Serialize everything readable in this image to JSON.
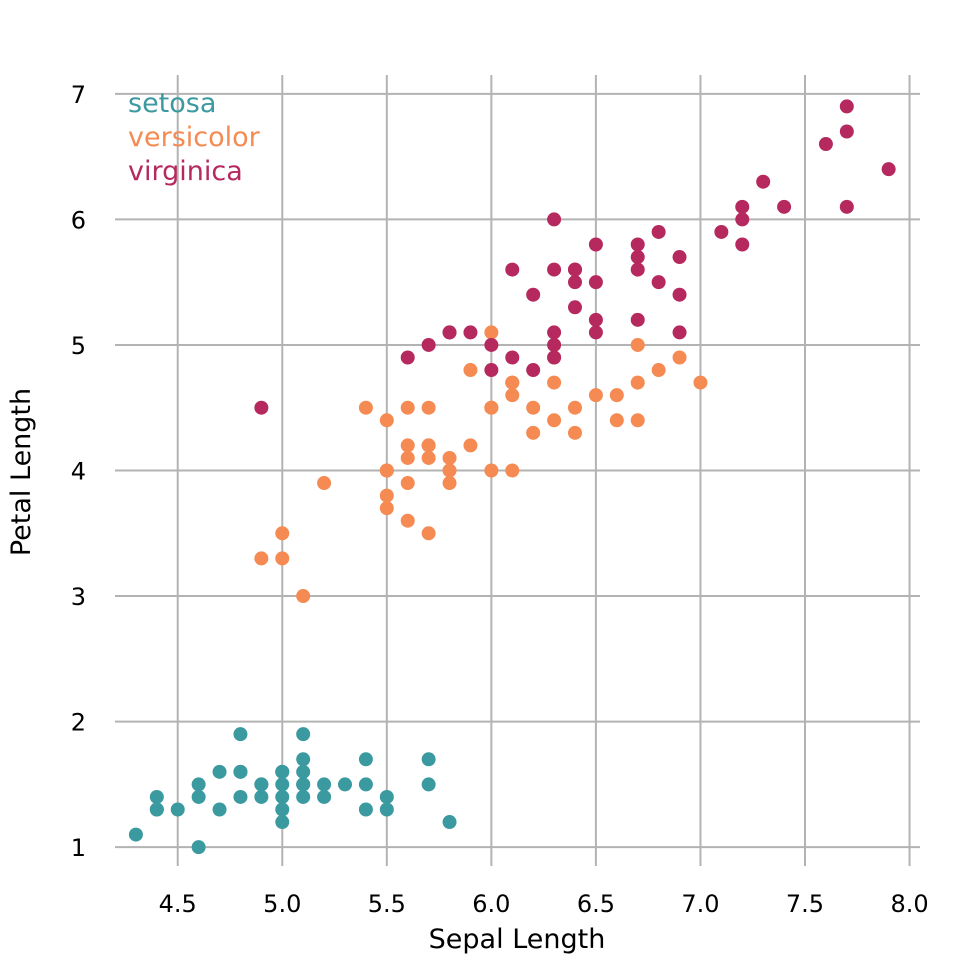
{
  "chart_data": {
    "type": "scatter",
    "title": "",
    "xlabel": "Sepal Length",
    "ylabel": "Petal Length",
    "xlim": [
      4.2,
      8.05
    ],
    "ylim": [
      0.85,
      7.15
    ],
    "xticks": [
      4.5,
      5.0,
      5.5,
      6.0,
      6.5,
      7.0,
      7.5,
      8.0
    ],
    "xtick_labels": [
      "4.5",
      "5.0",
      "5.5",
      "6.0",
      "6.5",
      "7.0",
      "7.5",
      "8.0"
    ],
    "yticks": [
      1,
      2,
      3,
      4,
      5,
      6,
      7
    ],
    "ytick_labels": [
      "1",
      "2",
      "3",
      "4",
      "5",
      "6",
      "7"
    ],
    "grid": true,
    "legend_position": "top-left",
    "series": [
      {
        "name": "setosa",
        "color": "#3a9aa0",
        "x": [
          4.3,
          4.4,
          4.4,
          4.4,
          4.5,
          4.6,
          4.6,
          4.6,
          4.7,
          4.7,
          4.8,
          4.8,
          4.8,
          4.8,
          4.9,
          4.9,
          4.9,
          5.0,
          5.0,
          5.0,
          5.0,
          5.0,
          5.0,
          5.1,
          5.1,
          5.1,
          5.1,
          5.1,
          5.1,
          5.2,
          5.2,
          5.3,
          5.4,
          5.4,
          5.4,
          5.5,
          5.5,
          5.7,
          5.7,
          5.8
        ],
        "y": [
          1.1,
          1.3,
          1.3,
          1.4,
          1.3,
          1.0,
          1.4,
          1.5,
          1.3,
          1.6,
          1.4,
          1.6,
          1.6,
          1.9,
          1.4,
          1.5,
          1.5,
          1.2,
          1.3,
          1.4,
          1.5,
          1.6,
          1.6,
          1.4,
          1.5,
          1.5,
          1.6,
          1.7,
          1.9,
          1.4,
          1.5,
          1.5,
          1.3,
          1.5,
          1.7,
          1.3,
          1.4,
          1.5,
          1.7,
          1.2
        ]
      },
      {
        "name": "versicolor",
        "color": "#f58a52",
        "x": [
          4.9,
          5.0,
          5.0,
          5.1,
          5.2,
          5.4,
          5.5,
          5.5,
          5.5,
          5.5,
          5.5,
          5.6,
          5.6,
          5.6,
          5.6,
          5.6,
          5.7,
          5.7,
          5.7,
          5.7,
          5.7,
          5.8,
          5.8,
          5.8,
          5.9,
          5.9,
          6.0,
          6.0,
          6.0,
          6.0,
          6.1,
          6.1,
          6.1,
          6.1,
          6.2,
          6.2,
          6.3,
          6.3,
          6.3,
          6.4,
          6.4,
          6.5,
          6.6,
          6.6,
          6.7,
          6.7,
          6.7,
          6.8,
          6.9,
          7.0
        ],
        "y": [
          3.3,
          3.3,
          3.5,
          3.0,
          3.9,
          4.5,
          3.7,
          3.8,
          4.0,
          4.0,
          4.4,
          3.6,
          3.9,
          4.1,
          4.2,
          4.5,
          3.5,
          4.1,
          4.2,
          4.2,
          4.5,
          3.9,
          4.0,
          4.1,
          4.2,
          4.8,
          4.0,
          4.5,
          4.5,
          5.1,
          4.0,
          4.6,
          4.7,
          4.7,
          4.3,
          4.5,
          4.4,
          4.7,
          4.9,
          4.3,
          4.5,
          4.6,
          4.4,
          4.6,
          4.4,
          4.7,
          5.0,
          4.8,
          4.9,
          4.7
        ]
      },
      {
        "name": "virginica",
        "color": "#b5295e",
        "x": [
          4.9,
          5.6,
          5.7,
          5.8,
          5.8,
          5.9,
          6.0,
          6.0,
          6.1,
          6.1,
          6.2,
          6.2,
          6.3,
          6.3,
          6.3,
          6.3,
          6.3,
          6.4,
          6.4,
          6.4,
          6.4,
          6.5,
          6.5,
          6.5,
          6.5,
          6.7,
          6.7,
          6.7,
          6.7,
          6.8,
          6.8,
          6.9,
          6.9,
          6.9,
          7.1,
          7.2,
          7.2,
          7.2,
          7.3,
          7.4,
          7.6,
          7.7,
          7.7,
          7.7,
          7.9
        ],
        "y": [
          4.5,
          4.9,
          5.0,
          5.1,
          5.1,
          5.1,
          4.8,
          5.0,
          4.9,
          5.6,
          4.8,
          5.4,
          4.9,
          5.0,
          5.1,
          5.6,
          6.0,
          5.3,
          5.5,
          5.6,
          5.6,
          5.1,
          5.2,
          5.5,
          5.8,
          5.2,
          5.6,
          5.7,
          5.8,
          5.5,
          5.9,
          5.1,
          5.4,
          5.7,
          5.9,
          5.8,
          6.0,
          6.1,
          6.3,
          6.1,
          6.6,
          6.1,
          6.7,
          6.9,
          6.4
        ]
      }
    ]
  }
}
